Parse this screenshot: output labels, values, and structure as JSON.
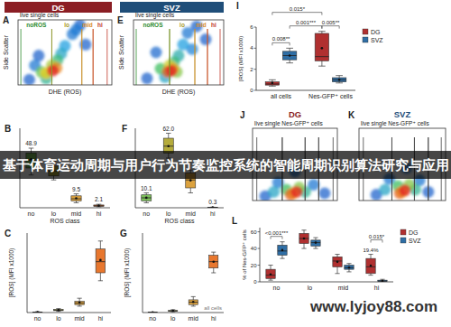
{
  "banner": {
    "text": "基于体育运动周期与用户行为节奏监控系统的智能周期识别算法研究与应用"
  },
  "watermark": {
    "text": "www.lyjoy88.com"
  },
  "chart_data": [
    {
      "type": "scatter",
      "panel": "A",
      "title": "DG",
      "subtitle": "live single cells",
      "color": "#8b1e24",
      "x_label": "DHE (ROS)",
      "y_label": "Side Scatter",
      "xlim": [
        0,
        1
      ],
      "ylim": [
        0,
        1
      ],
      "tick_labels": false,
      "x": [
        0.12,
        0.22,
        0.66,
        0.72,
        0.58,
        0.18,
        0.62,
        0.5,
        0.46,
        0.3,
        0.42,
        0.25,
        0.36,
        0.3,
        0.41,
        0.37
      ],
      "y": [
        0.08,
        0.45,
        0.92,
        0.62,
        0.78,
        0.3,
        0.85,
        0.6,
        0.48,
        0.1,
        0.38,
        0.2,
        0.3,
        0.18,
        0.26,
        0.22
      ],
      "density": [
        0.1,
        0.1,
        0.1,
        0.1,
        0.15,
        0.15,
        0.15,
        0.25,
        0.3,
        0.4,
        0.45,
        0.55,
        0.65,
        0.75,
        0.85,
        1.0
      ],
      "gates": [
        {
          "label": "noROS",
          "range": [
            0.03,
            0.36
          ]
        },
        {
          "label": "lo",
          "range": [
            0.36,
            0.68
          ]
        },
        {
          "label": "mid",
          "range": [
            0.68,
            0.8
          ]
        },
        {
          "label": "hi",
          "range": [
            0.8,
            0.95
          ]
        }
      ],
      "colors": [
        "#2e8b2e",
        "#a89a2a",
        "#d98c2b",
        "#c0392b"
      ]
    },
    {
      "type": "scatter",
      "panel": "E",
      "title": "SVZ",
      "subtitle": "live single cells",
      "color": "#1f4e79",
      "x_label": "DHE (ROS)",
      "y_label": "Side Scatter",
      "xlim": [
        0,
        1
      ],
      "ylim": [
        0,
        1
      ],
      "tick_labels": false,
      "x": [
        0.15,
        0.8,
        0.7,
        0.25,
        0.6,
        0.65,
        0.55,
        0.35,
        0.5,
        0.45,
        0.3,
        0.48,
        0.4,
        0.44,
        0.38,
        0.42
      ],
      "y": [
        0.1,
        0.7,
        0.9,
        0.5,
        0.8,
        0.55,
        0.62,
        0.12,
        0.45,
        0.35,
        0.25,
        0.2,
        0.3,
        0.25,
        0.2,
        0.22
      ],
      "density": [
        0.1,
        0.1,
        0.1,
        0.12,
        0.15,
        0.18,
        0.25,
        0.3,
        0.35,
        0.45,
        0.5,
        0.6,
        0.7,
        0.8,
        0.9,
        1.0
      ],
      "gates": [
        {
          "label": "noROS",
          "range": [
            0.03,
            0.4
          ]
        },
        {
          "label": "lo",
          "range": [
            0.4,
            0.68
          ]
        },
        {
          "label": "mid",
          "range": [
            0.68,
            0.82
          ]
        },
        {
          "label": "hi",
          "range": [
            0.82,
            0.96
          ]
        }
      ],
      "colors": [
        "#2e8b2e",
        "#a89a2a",
        "#d98c2b",
        "#c0392b"
      ]
    },
    {
      "type": "box",
      "panel": "B",
      "categories": [
        "no",
        "lo",
        "mid",
        "hi"
      ],
      "x_label": "ROS class",
      "ylim": [
        0,
        80
      ],
      "tick_labels": "x",
      "data_labels": true,
      "values": [
        48.9,
        37.4,
        9.5,
        2.1
      ],
      "value_labels": [
        "48.9",
        null,
        "9.5",
        "2.1"
      ],
      "boxes": [
        {
          "min": 33,
          "q1": 40,
          "median": 48,
          "q3": 55,
          "max": 60
        },
        {
          "min": 28,
          "q1": 32,
          "median": 37,
          "q3": 42,
          "max": 47
        },
        {
          "min": 5,
          "q1": 7,
          "median": 9,
          "q3": 12,
          "max": 14
        },
        {
          "min": 1,
          "q1": 1.5,
          "median": 2,
          "q3": 2.8,
          "max": 3.5
        }
      ],
      "colors": [
        "#7cbf5a",
        "#b5ac3c",
        "#dca23e",
        "#e07b39"
      ]
    },
    {
      "type": "box",
      "panel": "F",
      "categories": [
        "no",
        "lo",
        "mid",
        "hi"
      ],
      "x_label": "ROS class",
      "ylim": [
        0,
        80
      ],
      "tick_labels": "x",
      "data_labels": true,
      "values": [
        10.1,
        62.0,
        27.6,
        0.3
      ],
      "value_labels": [
        "10.1",
        "62.0",
        null,
        "0.3"
      ],
      "boxes": [
        {
          "min": 5,
          "q1": 7,
          "median": 10,
          "q3": 13,
          "max": 15
        },
        {
          "min": 50,
          "q1": 55,
          "median": 62,
          "q3": 70,
          "max": 75
        },
        {
          "min": 15,
          "q1": 20,
          "median": 28,
          "q3": 35,
          "max": 38
        },
        {
          "min": 0,
          "q1": 0.1,
          "median": 0.3,
          "q3": 0.5,
          "max": 0.6
        }
      ],
      "colors": [
        "#7cbf5a",
        "#b5ac3c",
        "#dca23e",
        "#e07b39"
      ]
    },
    {
      "type": "box",
      "panel": "C",
      "categories": [
        "no",
        "lo",
        "mid",
        "hi"
      ],
      "y_label": "[ROS] (MFI x1000)",
      "ylim": [
        0,
        50
      ],
      "tick_labels": "x",
      "values": [
        0.2,
        1.6,
        6.2,
        33
      ],
      "boxes": [
        {
          "min": 0,
          "q1": 0.1,
          "median": 0.2,
          "q3": 0.3,
          "max": 0.5
        },
        {
          "min": 0.8,
          "q1": 1.2,
          "median": 1.5,
          "q3": 2,
          "max": 2.5
        },
        {
          "min": 4,
          "q1": 5,
          "median": 6,
          "q3": 7,
          "max": 9
        },
        {
          "min": 20,
          "q1": 25,
          "median": 32,
          "q3": 40,
          "max": 45
        }
      ],
      "colors": [
        "#7cbf5a",
        "#b5ac3c",
        "#dca23e",
        "#e8772e"
      ]
    },
    {
      "type": "box",
      "panel": "G",
      "categories": [
        "no",
        "lo",
        "mid",
        "hi"
      ],
      "y_label": "[ROS] (MFI x1000)",
      "ylim": [
        0,
        50
      ],
      "tick_labels": "x",
      "annotation": "all cells",
      "values": [
        0.1,
        1.1,
        6.7,
        32
      ],
      "boxes": [
        {
          "min": 0,
          "q1": 0.05,
          "median": 0.1,
          "q3": 0.2,
          "max": 0.3
        },
        {
          "min": 0.5,
          "q1": 0.8,
          "median": 1,
          "q3": 1.3,
          "max": 1.8
        },
        {
          "min": 4,
          "q1": 5,
          "median": 6.5,
          "q3": 8,
          "max": 10
        },
        {
          "min": 25,
          "q1": 28,
          "median": 32,
          "q3": 36,
          "max": 38
        }
      ],
      "colors": [
        "#7cbf5a",
        "#b5ac3c",
        "#dca23e",
        "#e8772e"
      ]
    },
    {
      "type": "box",
      "panel": "I",
      "categories": [
        "all cells",
        "Nes-GFP⁺ cells"
      ],
      "y_label": "[ROS] (MFI x1000)",
      "ylim": [
        0,
        6
      ],
      "yticks": [
        0,
        2,
        4,
        6
      ],
      "legend": "right",
      "series": [
        {
          "name": "DG",
          "color": "#b03030",
          "values": [
            0.7,
            4.0
          ],
          "boxes": [
            {
              "min": 0.4,
              "q1": 0.5,
              "median": 0.6,
              "q3": 0.8,
              "max": 1.0
            },
            {
              "min": 2.3,
              "q1": 2.8,
              "median": 3.2,
              "q3": 5.4,
              "max": 5.6
            }
          ]
        },
        {
          "name": "SVZ",
          "color": "#2f6ea5",
          "values": [
            3.3,
            1.0
          ],
          "boxes": [
            {
              "min": 2.6,
              "q1": 2.9,
              "median": 3.3,
              "q3": 3.7,
              "max": 4.0
            },
            {
              "min": 0.7,
              "q1": 0.8,
              "median": 1.0,
              "q3": 1.2,
              "max": 1.4
            }
          ]
        }
      ],
      "brackets": [
        {
          "label": "0.008**",
          "from": [
            0,
            0
          ],
          "to": [
            0,
            1
          ]
        },
        {
          "label": "0.001***",
          "from": [
            0,
            1
          ],
          "to": [
            1,
            0
          ]
        },
        {
          "label": "0.005**",
          "from": [
            1,
            0
          ],
          "to": [
            1,
            1
          ]
        },
        {
          "label": "0.015*",
          "from": [
            0,
            0
          ],
          "to": [
            1,
            0
          ]
        }
      ]
    },
    {
      "type": "scatter",
      "panel": "J",
      "title": "DG",
      "subtitle": "live single Nes-GFP⁺ cells",
      "color": "#8b1e24",
      "xlim": [
        0,
        1
      ],
      "ylim": [
        0,
        1
      ],
      "tick_labels": false,
      "x": [
        0.15,
        0.85,
        0.3,
        0.72,
        0.5,
        0.25,
        0.62,
        0.4,
        0.55,
        0.48,
        0.45,
        0.52
      ],
      "y": [
        0.06,
        0.1,
        0.25,
        0.22,
        0.4,
        0.12,
        0.12,
        0.15,
        0.18,
        0.1,
        0.08,
        0.12
      ],
      "density": [
        0.1,
        0.1,
        0.15,
        0.15,
        0.15,
        0.3,
        0.4,
        0.5,
        0.6,
        0.75,
        0.9,
        1.0
      ],
      "gates": [
        {
          "range": [
            0.05,
            0.35
          ]
        },
        {
          "range": [
            0.35,
            0.62
          ]
        },
        {
          "range": [
            0.62,
            0.78
          ]
        },
        {
          "range": [
            0.78,
            0.95
          ]
        }
      ]
    },
    {
      "type": "scatter",
      "panel": "K",
      "title": "SVZ",
      "subtitle": "live single Nes-GFP⁺ cells",
      "color": "#1f4e79",
      "xlim": [
        0,
        1
      ],
      "ylim": [
        0,
        1
      ],
      "tick_labels": false,
      "x": [
        0.2,
        0.8,
        0.35,
        0.7,
        0.55,
        0.3,
        0.65,
        0.45,
        0.58,
        0.5,
        0.47,
        0.53
      ],
      "y": [
        0.08,
        0.12,
        0.3,
        0.28,
        0.45,
        0.15,
        0.15,
        0.2,
        0.22,
        0.12,
        0.1,
        0.14
      ],
      "density": [
        0.1,
        0.1,
        0.15,
        0.15,
        0.15,
        0.3,
        0.4,
        0.5,
        0.6,
        0.75,
        0.9,
        1.0
      ],
      "gates": [
        {
          "range": [
            0.05,
            0.38
          ]
        },
        {
          "range": [
            0.38,
            0.64
          ]
        },
        {
          "range": [
            0.64,
            0.8
          ]
        },
        {
          "range": [
            0.8,
            0.95
          ]
        }
      ]
    },
    {
      "type": "box",
      "panel": "L",
      "categories": [
        "no",
        "lo",
        "mid",
        "hi"
      ],
      "y_label": "% of Nes-GFP⁺ cells",
      "ylim": [
        0,
        65
      ],
      "yticks": [
        0,
        20,
        40,
        60
      ],
      "legend": "right",
      "series": [
        {
          "name": "DG",
          "color": "#b03030",
          "values": [
            9,
            52,
            24,
            19.4
          ],
          "boxes": [
            {
              "min": 2,
              "q1": 4,
              "median": 8,
              "q3": 15,
              "max": 20
            },
            {
              "min": 40,
              "q1": 46,
              "median": 52,
              "q3": 58,
              "max": 62
            },
            {
              "min": 10,
              "q1": 18,
              "median": 25,
              "q3": 30,
              "max": 33
            },
            {
              "min": 8,
              "q1": 10,
              "median": 18,
              "q3": 28,
              "max": 33
            }
          ]
        },
        {
          "name": "SVZ",
          "color": "#2f6ea5",
          "values": [
            38,
            47,
            17,
            1
          ],
          "boxes": [
            {
              "min": 28,
              "q1": 32,
              "median": 37,
              "q3": 44,
              "max": 48
            },
            {
              "min": 40,
              "q1": 43,
              "median": 47,
              "q3": 50,
              "max": 53
            },
            {
              "min": 12,
              "q1": 15,
              "median": 17,
              "q3": 20,
              "max": 22
            },
            {
              "min": 0,
              "q1": 0.5,
              "median": 1,
              "q3": 2,
              "max": 3
            }
          ]
        }
      ],
      "brackets": [
        {
          "label": "<0.001***",
          "from": [
            0,
            0
          ],
          "to": [
            0,
            1
          ]
        },
        {
          "label": "0.015*",
          "from": [
            3,
            0
          ],
          "to": [
            3,
            1
          ]
        }
      ],
      "annotations": [
        {
          "text": "19.4%",
          "category": 3,
          "series": 0
        }
      ]
    }
  ]
}
